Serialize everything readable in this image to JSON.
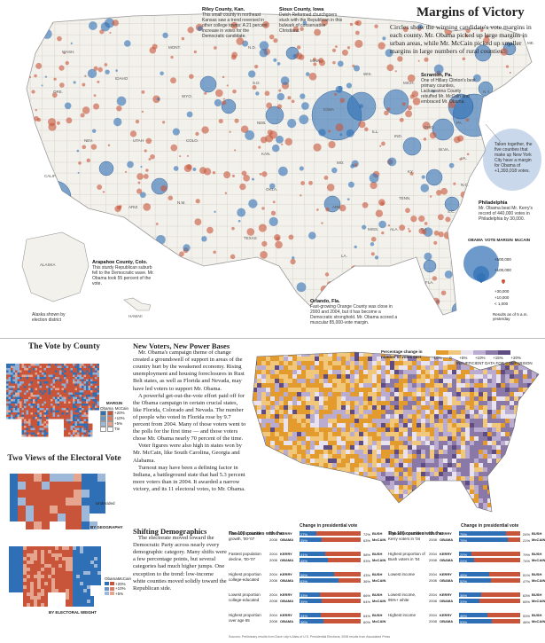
{
  "main": {
    "title": "Margins of Victory",
    "intro": "Circles show the winning candidate's vote margins in each county. Mr. Obama picked up large margins in urban areas, while Mr. McCain picked up smaller margins in large numbers of rural counties."
  },
  "notes": [
    {
      "title": "Riley County, Kan.",
      "text": "This small county in northeast Kansas saw a trend reversed in other college towns: A 21 percent increase in votes for the Democratic candidate."
    },
    {
      "title": "Sioux County, Iowa",
      "text": "Dutch Reformed churchgoers stuck with the Republican in this bulwark of conservative Christians."
    },
    {
      "title": "Scranton, Pa.",
      "text": "One of Hillary Clinton's best primary counties, Lackawanna County rebuffed Mr. McCain and embraced Mr. Obama."
    },
    {
      "title": "",
      "text": "Taken together, the five counties that make up New York City have a margin for Obama of +1,393,018 votes."
    },
    {
      "title": "Philadelphia",
      "text": "Mr. Obama beat Mr. Kerry's record of 440,000 votes in Philadelphia by 30,000."
    },
    {
      "title": "Arapahoe County, Colo.",
      "text": "This sturdy Republican suburb fell to the Democratic wave. Mr. Obama took 55 percent of the vote."
    },
    {
      "title": "Orlando, Fla.",
      "text": "Fast-growing Orange County was close in 2000 and 2004, but it has become a Democratic stronghold. Mr. Obama scored a muscular 85,000-vote margin."
    }
  ],
  "map_labels": {
    "alaska": "ALASKA",
    "hawaii": "HAWAII",
    "alaska_note": "Alaska shown by election district",
    "states": [
      "WASH.",
      "ORE.",
      "CALIF.",
      "NEV.",
      "IDAHO",
      "MONT.",
      "WYO.",
      "UTAH",
      "ARIZ.",
      "COLO.",
      "N.M.",
      "N.D.",
      "S.D.",
      "NEB.",
      "KAN.",
      "OKLA.",
      "TEXAS",
      "MINN.",
      "IOWA",
      "MO.",
      "ARK.",
      "LA.",
      "WIS.",
      "ILL.",
      "MICH.",
      "IND.",
      "OHIO",
      "KY.",
      "TENN.",
      "MISS.",
      "ALA.",
      "GA.",
      "FLA.",
      "S.C.",
      "N.C.",
      "VA.",
      "W.VA.",
      "PA.",
      "N.Y.",
      "ME."
    ]
  },
  "vote_legend": {
    "heading": "VOTE MARGIN",
    "obama": "OBAMA",
    "mccain": "McCAIN",
    "values": [
      "+500,000",
      "+100,000",
      "+30,000",
      "+10,000",
      "< 1,000"
    ],
    "footnote": "Results as of 5 a.m. yesterday"
  },
  "vote_by_county": {
    "title": "The Vote by County",
    "legend_h": "MARGIN",
    "obama": "Obama",
    "mccain": "McCain",
    "rows": [
      "+20%",
      "+10%",
      "+5%",
      "Tie"
    ]
  },
  "electoral": {
    "title": "Two Views of the Electoral Vote",
    "geo_label": "BY GEOGRAPHY",
    "weight_label": "BY ELECTORAL WEIGHT",
    "undecided": "Undecided",
    "legend_obama": "Obama",
    "legend_mccain": "McCain",
    "legend_rows": [
      "+20%",
      "+10%",
      "+5%"
    ]
  },
  "article": {
    "heading": "New Voters, New Power Bases",
    "paragraphs": [
      "Mr. Obama's campaign theme of change created a groundswell of support in areas of the country hurt by the weakened economy. Rising unemployment and housing foreclosures in Rust Belt states, as well as Florida and Nevada, may have led voters to support Mr. Obama.",
      "A powerful get-out-the-vote effort paid off for the Obama campaign in certain crucial states, like Florida, Colorado and Nevada. The number of people who voted in Florida rose by 9.7 percent from 2004. Many of those voters went to the polls for the first time — and those voters chose Mr. Obama nearly 70 percent of the time.",
      "Voter figures were also high in states won by Mr. McCain, like South Carolina, Georgia and Alabama.",
      "Turnout may have been a defining factor in Indiana, a battleground state that had 5.3 percent more voters than in 2004. It awarded a narrow victory, and its 11 electoral votes, to Mr. Obama."
    ]
  },
  "change_map": {
    "legend_title": "Percentage change in number of votes cast",
    "ticks": [
      "-10%",
      "0",
      "+5%",
      "+10%",
      "+15%",
      "+20%"
    ],
    "insufficient": "INSUFFICIENT DATA FOR COMPARISON"
  },
  "shifting": {
    "heading": "Shifting Demographics",
    "text": "The electorate moved toward the Democratic Party across nearly every demographic category. Many shifts were a few percentage points, but several categories had much higher jumps. One exception to the trend: low-income white counties moved solidly toward the Republican side."
  },
  "demographics": {
    "col_head_a": "The 100 counties with the:",
    "col_head_b": "Change in presidential vote",
    "left": [
      {
        "label": "Fastest population growth, '00-'07",
        "rows": [
          {
            "year": "2004",
            "dem": "KERRY",
            "dp": "27%",
            "rep": "BUSH",
            "rp": "72%"
          },
          {
            "year": "2008",
            "dem": "OBAMA",
            "dp": "35%",
            "rep": "McCAIN",
            "rp": "63%"
          }
        ]
      },
      {
        "label": "Fastest population decline, '00-'07",
        "rows": [
          {
            "year": "2004",
            "dem": "KERRY",
            "dp": "41%",
            "rep": "BUSH",
            "rp": "58%"
          },
          {
            "year": "2008",
            "dem": "OBAMA",
            "dp": "45%",
            "rep": "McCAIN",
            "rp": "53%"
          }
        ]
      },
      {
        "label": "Highest proportion college-educated",
        "rows": [
          {
            "year": "2004",
            "dem": "KERRY",
            "dp": "56%",
            "rep": "BUSH",
            "rp": "43%"
          },
          {
            "year": "2008",
            "dem": "OBAMA",
            "dp": "63%",
            "rep": "McCAIN",
            "rp": "36%"
          }
        ]
      },
      {
        "label": "Lowest proportion college-educated",
        "rows": [
          {
            "year": "2004",
            "dem": "KERRY",
            "dp": "33%",
            "rep": "BUSH",
            "rp": "66%"
          },
          {
            "year": "2008",
            "dem": "OBAMA",
            "dp": "35%",
            "rep": "McCAIN",
            "rp": "64%"
          }
        ]
      },
      {
        "label": "Highest proportion over age 65",
        "rows": [
          {
            "year": "2004",
            "dem": "KERRY",
            "dp": "34%",
            "rep": "BUSH",
            "rp": "64%"
          },
          {
            "year": "2008",
            "dem": "OBAMA",
            "dp": "38%",
            "rep": "McCAIN",
            "rp": "60%"
          }
        ]
      }
    ],
    "right": [
      {
        "label": "Highest proportion of Kerry voters in '04",
        "rows": [
          {
            "year": "2004",
            "dem": "KERRY",
            "dp": "75%",
            "rep": "BUSH",
            "rp": "24%"
          },
          {
            "year": "2008",
            "dem": "OBAMA",
            "dp": "78%",
            "rep": "McCAIN",
            "rp": "21%"
          }
        ]
      },
      {
        "label": "Highest proportion of Bush voters in '04",
        "rows": [
          {
            "year": "2004",
            "dem": "KERRY",
            "dp": "20%",
            "rep": "BUSH",
            "rp": "79%"
          },
          {
            "year": "2008",
            "dem": "OBAMA",
            "dp": "24%",
            "rep": "McCAIN",
            "rp": "74%"
          }
        ]
      },
      {
        "label": "Lowest income",
        "rows": [
          {
            "year": "2004",
            "dem": "KERRY",
            "dp": "48%",
            "rep": "BUSH",
            "rp": "51%"
          },
          {
            "year": "2008",
            "dem": "OBAMA",
            "dp": "52%",
            "rep": "McCAIN",
            "rp": "47%"
          }
        ]
      },
      {
        "label": "Lowest income, 95%+ white",
        "rows": [
          {
            "year": "2004",
            "dem": "KERRY",
            "dp": "36%",
            "rep": "BUSH",
            "rp": "63%"
          },
          {
            "year": "2008",
            "dem": "OBAMA",
            "dp": "33%",
            "rep": "McCAIN",
            "rp": "65%"
          }
        ]
      },
      {
        "label": "Highest income",
        "rows": [
          {
            "year": "2004",
            "dem": "KERRY",
            "dp": "46%",
            "rep": "BUSH",
            "rp": "53%"
          },
          {
            "year": "2008",
            "dem": "OBAMA",
            "dp": "53%",
            "rep": "McCAIN",
            "rp": "46%"
          }
        ]
      }
    ],
    "source": "Sources: Preliminary results from Dave Leip's Atlas of U.S. Presidential Elections; 2008 results from Associated Press"
  },
  "colors": {
    "dem": "#2f6fb5",
    "rep": "#c8553a",
    "dem_light": "#9db8d8",
    "rep_light": "#e6a58e",
    "orange": "#e9a43a",
    "purple": "#8a78a6"
  }
}
